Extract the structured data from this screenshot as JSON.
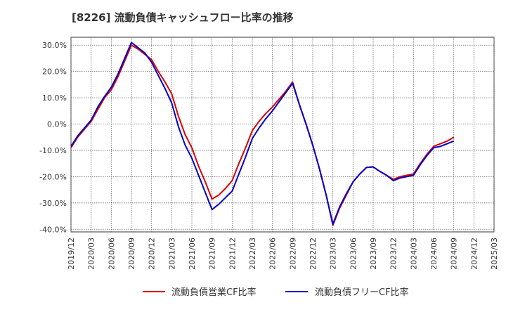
{
  "chart_data": {
    "type": "line",
    "title": "[8226]  流動負債キャッシュフロー比率の推移",
    "x": [
      "2019/12",
      "2020/03",
      "2020/06",
      "2020/09",
      "2020/12",
      "2021/03",
      "2021/06",
      "2021/09",
      "2021/12",
      "2022/03",
      "2022/06",
      "2022/09",
      "2022/12",
      "2023/03",
      "2023/06",
      "2023/09",
      "2023/12",
      "2024/03",
      "2024/06",
      "2024/09",
      "2024/12",
      "2025/03"
    ],
    "xlim": [
      "2019/12",
      "2025/03"
    ],
    "ylim": [
      -41,
      33
    ],
    "yticks": [
      30,
      20,
      10,
      0,
      -10,
      -20,
      -30,
      -40
    ],
    "ytick_labels": [
      "30.0%",
      "20.0%",
      "10.0%",
      "0.0%",
      "-10.0%",
      "-20.0%",
      "-30.0%",
      "-40.0%"
    ],
    "grid": true,
    "legend_position": "bottom",
    "series": [
      {
        "name": "流動負債営業CF比率",
        "color": "#dd0000",
        "points": [
          [
            "2019/12",
            -9
          ],
          [
            "2020/01",
            -5
          ],
          [
            "2020/02",
            -2
          ],
          [
            "2020/03",
            1
          ],
          [
            "2020/04",
            5.5
          ],
          [
            "2020/05",
            10
          ],
          [
            "2020/06",
            13
          ],
          [
            "2020/07",
            18
          ],
          [
            "2020/08",
            24
          ],
          [
            "2020/09",
            30
          ],
          [
            "2020/10",
            28.5
          ],
          [
            "2020/11",
            26.5
          ],
          [
            "2020/12",
            24.5
          ],
          [
            "2021/01",
            20
          ],
          [
            "2021/02",
            16
          ],
          [
            "2021/03",
            11.5
          ],
          [
            "2021/04",
            3
          ],
          [
            "2021/05",
            -4
          ],
          [
            "2021/06",
            -9
          ],
          [
            "2021/07",
            -16
          ],
          [
            "2021/08",
            -22
          ],
          [
            "2021/09",
            -28.5
          ],
          [
            "2021/10",
            -27
          ],
          [
            "2021/11",
            -24.5
          ],
          [
            "2021/12",
            -21.5
          ],
          [
            "2022/01",
            -15
          ],
          [
            "2022/02",
            -9
          ],
          [
            "2022/03",
            -2.5
          ],
          [
            "2022/04",
            1
          ],
          [
            "2022/05",
            4
          ],
          [
            "2022/06",
            6.5
          ],
          [
            "2022/07",
            9.5
          ],
          [
            "2022/08",
            12.5
          ],
          [
            "2022/09",
            16
          ],
          [
            "2022/10",
            7.5
          ],
          [
            "2022/11",
            0
          ],
          [
            "2022/12",
            -8
          ],
          [
            "2023/01",
            -17
          ],
          [
            "2023/02",
            -27
          ],
          [
            "2023/03",
            -38.5
          ],
          [
            "2023/04",
            -32
          ],
          [
            "2023/05",
            -27
          ],
          [
            "2023/06",
            -22
          ],
          [
            "2023/07",
            -19
          ],
          [
            "2023/08",
            -16.5
          ],
          [
            "2023/09",
            -16.3
          ],
          [
            "2023/10",
            -18
          ],
          [
            "2023/11",
            -19.5
          ],
          [
            "2023/12",
            -21
          ],
          [
            "2024/01",
            -20
          ],
          [
            "2024/02",
            -19.5
          ],
          [
            "2024/03",
            -19
          ],
          [
            "2024/04",
            -15
          ],
          [
            "2024/05",
            -11.5
          ],
          [
            "2024/06",
            -8.5
          ],
          [
            "2024/07",
            -7.5
          ],
          [
            "2024/08",
            -6.5
          ],
          [
            "2024/09",
            -5
          ]
        ]
      },
      {
        "name": "流動負債フリーCF比率",
        "color": "#0000cc",
        "points": [
          [
            "2019/12",
            -8.5
          ],
          [
            "2020/01",
            -4.5
          ],
          [
            "2020/02",
            -1.5
          ],
          [
            "2020/03",
            1.5
          ],
          [
            "2020/04",
            6.5
          ],
          [
            "2020/05",
            10.5
          ],
          [
            "2020/06",
            14
          ],
          [
            "2020/07",
            19
          ],
          [
            "2020/08",
            25
          ],
          [
            "2020/09",
            31
          ],
          [
            "2020/10",
            29
          ],
          [
            "2020/11",
            27
          ],
          [
            "2020/12",
            23.5
          ],
          [
            "2021/01",
            18.5
          ],
          [
            "2021/02",
            13.5
          ],
          [
            "2021/03",
            8
          ],
          [
            "2021/04",
            -1
          ],
          [
            "2021/05",
            -8
          ],
          [
            "2021/06",
            -13
          ],
          [
            "2021/07",
            -19.5
          ],
          [
            "2021/08",
            -26
          ],
          [
            "2021/09",
            -32.5
          ],
          [
            "2021/10",
            -30.5
          ],
          [
            "2021/11",
            -28
          ],
          [
            "2021/12",
            -25.5
          ],
          [
            "2022/01",
            -19
          ],
          [
            "2022/02",
            -12.5
          ],
          [
            "2022/03",
            -5.5
          ],
          [
            "2022/04",
            -1.5
          ],
          [
            "2022/05",
            2
          ],
          [
            "2022/06",
            5
          ],
          [
            "2022/07",
            8.5
          ],
          [
            "2022/08",
            12
          ],
          [
            "2022/09",
            15.5
          ],
          [
            "2022/10",
            7.5
          ],
          [
            "2022/11",
            0
          ],
          [
            "2022/12",
            -8
          ],
          [
            "2023/01",
            -17
          ],
          [
            "2023/02",
            -27
          ],
          [
            "2023/03",
            -38
          ],
          [
            "2023/04",
            -31.5
          ],
          [
            "2023/05",
            -26.5
          ],
          [
            "2023/06",
            -22
          ],
          [
            "2023/07",
            -19
          ],
          [
            "2023/08",
            -16.5
          ],
          [
            "2023/09",
            -16.3
          ],
          [
            "2023/10",
            -18
          ],
          [
            "2023/11",
            -19.5
          ],
          [
            "2023/12",
            -21.5
          ],
          [
            "2024/01",
            -20.5
          ],
          [
            "2024/02",
            -20
          ],
          [
            "2024/03",
            -19.5
          ],
          [
            "2024/04",
            -15.5
          ],
          [
            "2024/05",
            -12
          ],
          [
            "2024/06",
            -9
          ],
          [
            "2024/07",
            -8.5
          ],
          [
            "2024/08",
            -7.5
          ],
          [
            "2024/09",
            -6.5
          ]
        ]
      }
    ]
  }
}
